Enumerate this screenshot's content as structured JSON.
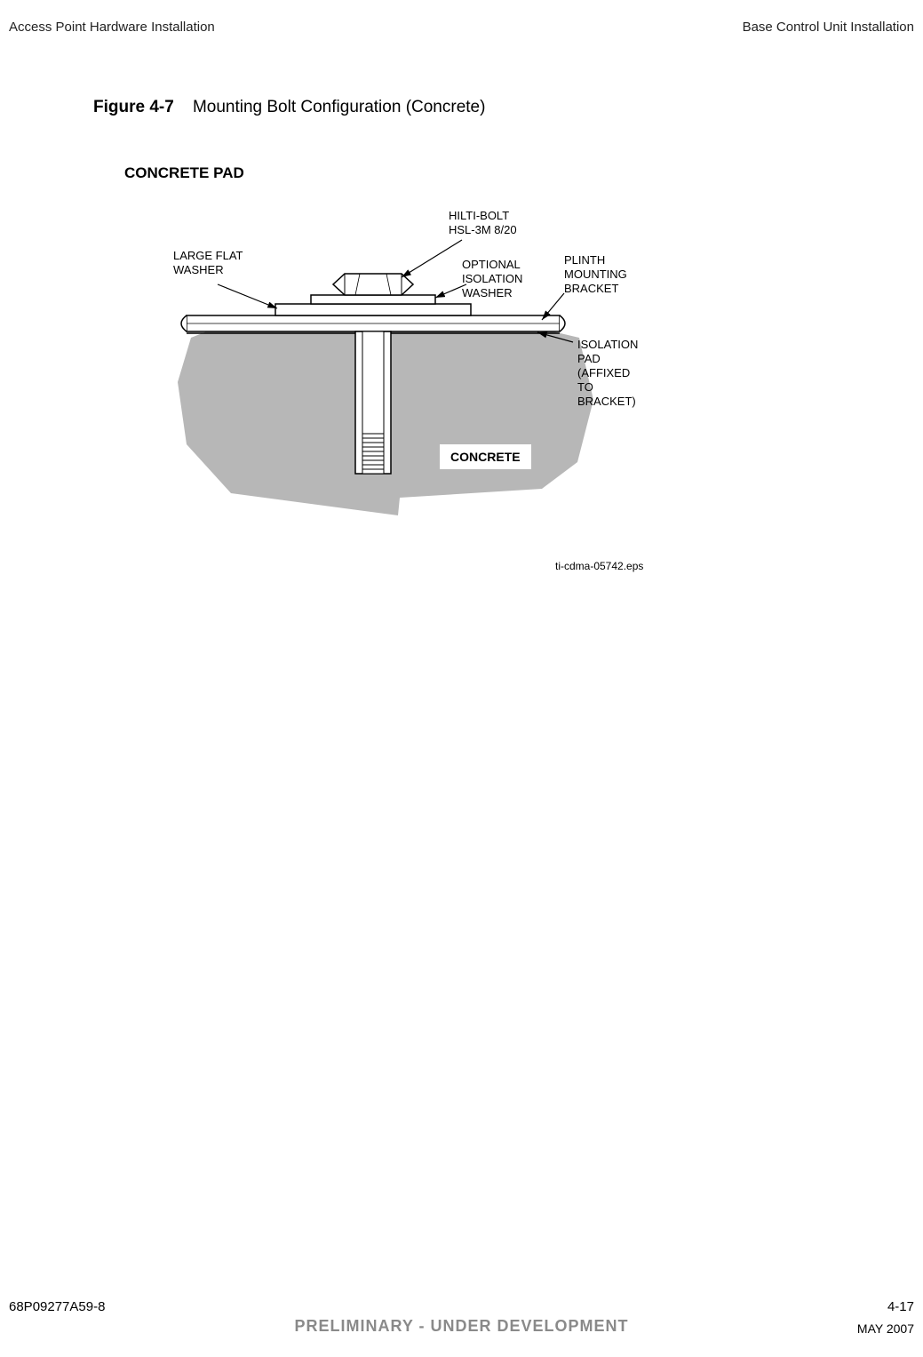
{
  "header": {
    "left": "Access Point Hardware Installation",
    "right": "Base Control Unit Installation"
  },
  "figure": {
    "number": "Figure 4-7",
    "title": "Mounting Bolt Configuration (Concrete)"
  },
  "diagram": {
    "type": "infographic",
    "title": "CONCRETE PAD",
    "labels": {
      "hilti": "HILTI-BOLT\nHSL-3M 8/20",
      "large_flat_washer": "LARGE FLAT\nWASHER",
      "optional_isolation_washer": "OPTIONAL\nISOLATION\nWASHER",
      "plinth": "PLINTH\nMOUNTING\nBRACKET",
      "isolation_pad": "ISOLATION\nPAD\n(AFFIXED\n TO\nBRACKET)",
      "concrete": "CONCRETE"
    },
    "eps_ref": "ti-cdma-05742.eps",
    "colors": {
      "concrete_fill": "#b7b7b7",
      "bracket_fill": "#ffffff",
      "outline": "#000000",
      "hatch": "#000000",
      "background": "#ffffff",
      "bolt_fill": "#ffffff"
    },
    "line_width": 1.5,
    "font_size_labels": 13,
    "font_size_title": 17
  },
  "footer": {
    "doc_number": "68P09277A59-8",
    "page": "4-17",
    "status": "PRELIMINARY - UNDER DEVELOPMENT",
    "date": "MAY 2007"
  }
}
